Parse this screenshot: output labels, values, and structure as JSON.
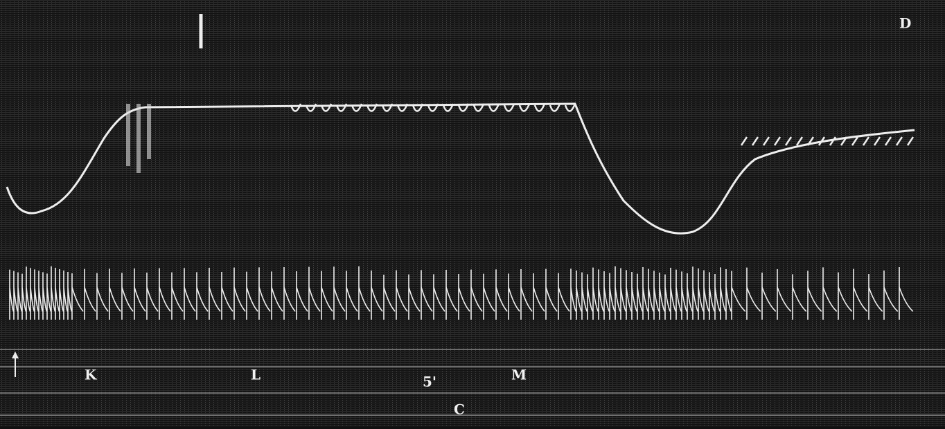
{
  "markers": {
    "top_right": "D",
    "first": "K",
    "second": "L",
    "time": "5'",
    "third": "M",
    "bottom": "C"
  }
}
